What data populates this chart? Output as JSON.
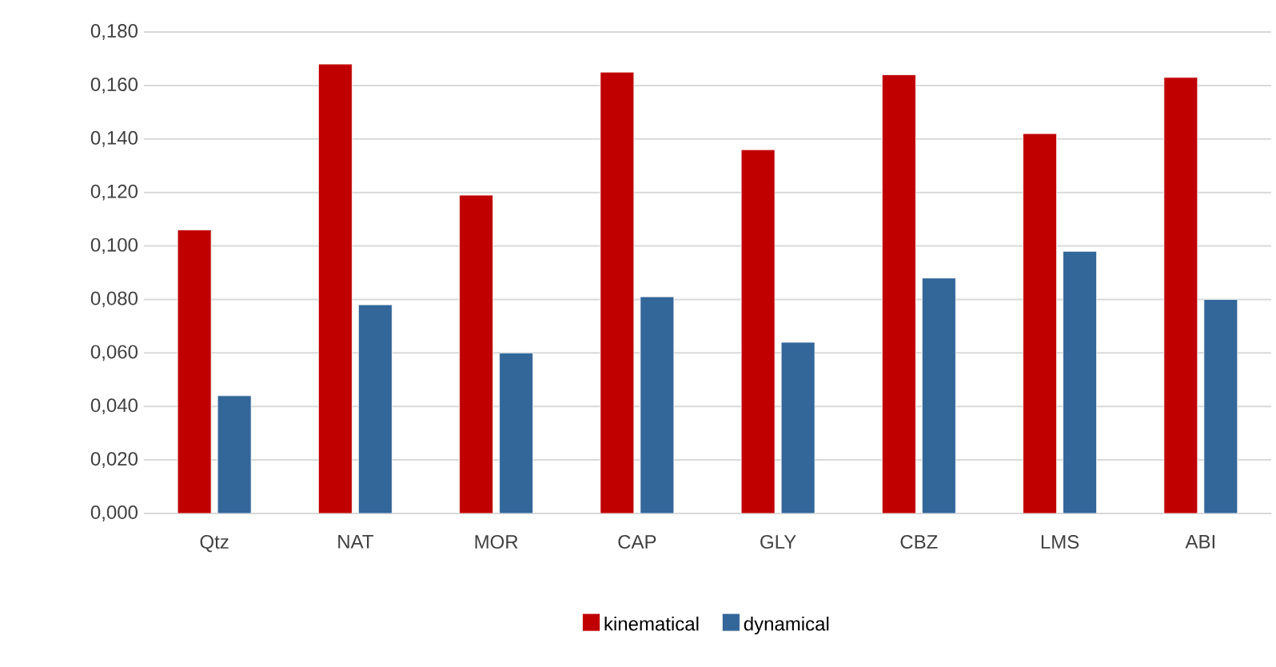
{
  "chart_data": {
    "type": "bar",
    "categories": [
      "Qtz",
      "NAT",
      "MOR",
      "CAP",
      "GLY",
      "CBZ",
      "LMS",
      "ABI"
    ],
    "series": [
      {
        "name": "kinematical",
        "color": "#c00000",
        "values": [
          0.106,
          0.168,
          0.119,
          0.165,
          0.136,
          0.164,
          0.142,
          0.163
        ]
      },
      {
        "name": "dynamical",
        "color": "#336699",
        "values": [
          0.044,
          0.078,
          0.06,
          0.081,
          0.064,
          0.088,
          0.098,
          0.08
        ]
      }
    ],
    "ylim": [
      0,
      0.18
    ],
    "yticks": [
      {
        "value": 0,
        "label": "0,000"
      },
      {
        "value": 0.02,
        "label": "0,020"
      },
      {
        "value": 0.04,
        "label": "0,040"
      },
      {
        "value": 0.06,
        "label": "0,060"
      },
      {
        "value": 0.08,
        "label": "0,080"
      },
      {
        "value": 0.1,
        "label": "0,100"
      },
      {
        "value": 0.12,
        "label": "0,120"
      },
      {
        "value": 0.14,
        "label": "0,140"
      },
      {
        "value": 0.16,
        "label": "0,160"
      },
      {
        "value": 0.18,
        "label": "0,180"
      }
    ],
    "grid": "y",
    "legend": "bottom"
  }
}
